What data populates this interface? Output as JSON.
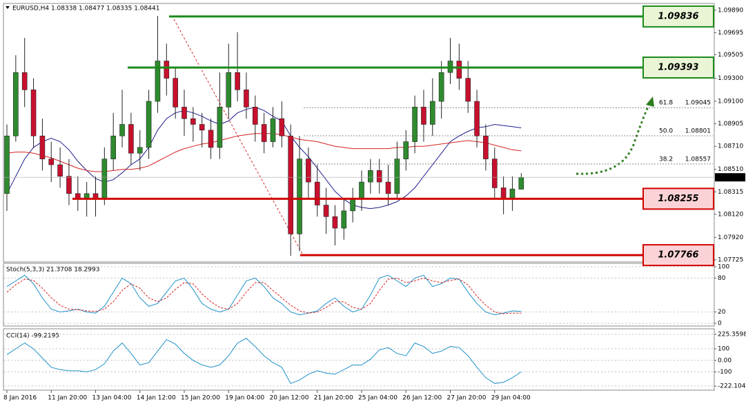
{
  "chart_data": [
    {
      "type": "candlestick",
      "title": "EURUSD,H4  1.08338 1.08477 1.08335 1.08441",
      "categories": [
        "8 Jan 2016",
        null,
        null,
        null,
        null,
        "11 Jan 20:00",
        null,
        null,
        null,
        null,
        "13 Jan 04:00",
        null,
        null,
        null,
        null,
        "14 Jan 12:00",
        null,
        null,
        null,
        null,
        "15 Jan 20:00",
        null,
        null,
        null,
        null,
        "19 Jan 04:00",
        null,
        null,
        null,
        null,
        "20 Jan 12:00",
        null,
        null,
        null,
        null,
        "21 Jan 20:00",
        null,
        null,
        null,
        null,
        "25 Jan 04:00",
        null,
        null,
        null,
        null,
        "26 Jan 12:00",
        null,
        null,
        null,
        null,
        "27 Jan 20:00",
        null,
        null,
        null,
        null,
        "29 Jan 04:00",
        null,
        null,
        null
      ],
      "open": [
        1.083,
        1.088,
        1.0935,
        1.092,
        1.088,
        1.086,
        1.0855,
        1.0845,
        1.083,
        1.0825,
        1.083,
        1.0825,
        1.086,
        1.088,
        1.089,
        1.0865,
        1.087,
        1.091,
        1.0945,
        1.093,
        1.0905,
        1.0895,
        1.089,
        1.0885,
        1.087,
        1.0905,
        1.0935,
        1.092,
        1.0905,
        1.089,
        1.0875,
        1.0895,
        1.088,
        1.0795,
        1.086,
        1.084,
        1.082,
        1.081,
        1.08,
        1.0815,
        1.0825,
        1.084,
        1.085,
        1.084,
        1.083,
        1.086,
        1.0875,
        1.0905,
        1.089,
        1.091,
        1.0935,
        1.0945,
        1.093,
        1.091,
        1.088,
        1.086,
        1.0835,
        1.0826,
        1.08338
      ],
      "high": [
        1.089,
        1.095,
        1.0965,
        1.093,
        1.0895,
        1.0875,
        1.087,
        1.086,
        1.0845,
        1.084,
        1.0845,
        1.087,
        1.09,
        1.092,
        1.09,
        1.0885,
        1.092,
        1.0984,
        1.096,
        1.094,
        1.092,
        1.0905,
        1.09,
        1.0895,
        1.0935,
        1.096,
        1.097,
        1.0935,
        1.0915,
        1.09,
        1.0905,
        1.091,
        1.089,
        1.088,
        1.087,
        1.0855,
        1.0835,
        1.082,
        1.0825,
        1.0835,
        1.085,
        1.086,
        1.086,
        1.0855,
        1.0875,
        1.0885,
        1.0915,
        1.092,
        1.093,
        1.0945,
        1.0965,
        1.096,
        1.0945,
        1.092,
        1.089,
        1.087,
        1.0845,
        1.0845,
        1.08477
      ],
      "low": [
        1.0815,
        1.0875,
        1.0905,
        1.087,
        1.085,
        1.084,
        1.0835,
        1.082,
        1.0815,
        1.081,
        1.081,
        1.082,
        1.085,
        1.087,
        1.0855,
        1.085,
        1.086,
        1.09,
        1.0915,
        1.0895,
        1.088,
        1.0875,
        1.087,
        1.086,
        1.086,
        1.0895,
        1.091,
        1.0895,
        1.0875,
        1.0865,
        1.087,
        1.087,
        1.0776,
        1.078,
        1.0825,
        1.081,
        1.0795,
        1.0785,
        1.079,
        1.0805,
        1.0815,
        1.083,
        1.083,
        1.082,
        1.0825,
        1.085,
        1.0865,
        1.0875,
        1.088,
        1.0895,
        1.0925,
        1.092,
        1.09,
        1.087,
        1.085,
        1.0825,
        1.0812,
        1.0815,
        1.08335
      ],
      "close": [
        1.088,
        1.0935,
        1.092,
        1.088,
        1.086,
        1.0855,
        1.0845,
        1.083,
        1.0825,
        1.083,
        1.0825,
        1.086,
        1.088,
        1.089,
        1.0865,
        1.087,
        1.091,
        1.0945,
        1.093,
        1.0905,
        1.0895,
        1.089,
        1.0885,
        1.087,
        1.0905,
        1.0935,
        1.092,
        1.0905,
        1.089,
        1.0875,
        1.0895,
        1.088,
        1.0795,
        1.086,
        1.084,
        1.082,
        1.081,
        1.08,
        1.0815,
        1.0825,
        1.084,
        1.085,
        1.084,
        1.083,
        1.086,
        1.0875,
        1.0905,
        1.089,
        1.091,
        1.0935,
        1.0945,
        1.093,
        1.091,
        1.088,
        1.086,
        1.0835,
        1.0826,
        1.0834,
        1.08441
      ],
      "up_color": "#2e8b2e",
      "down_color": "#c8102e",
      "series": [
        {
          "color": "#1c1c8c",
          "values": [
            1.083,
            1.0845,
            1.086,
            1.087,
            1.0875,
            1.0878,
            1.0875,
            1.0868,
            1.0858,
            1.085,
            1.0843,
            1.084,
            1.0842,
            1.0848,
            1.0855,
            1.086,
            1.087,
            1.0885,
            1.0895,
            1.09,
            1.0902,
            1.09,
            1.0897,
            1.0893,
            1.089,
            1.0893,
            1.09,
            1.0903,
            1.0905,
            1.0902,
            1.0897,
            1.0893,
            1.088,
            1.087,
            1.0862,
            1.0852,
            1.0842,
            1.0832,
            1.0825,
            1.082,
            1.0818,
            1.0817,
            1.0818,
            1.082,
            1.0823,
            1.0828,
            1.0835,
            1.0845,
            1.0855,
            1.0865,
            1.0875,
            1.088,
            1.0884,
            1.0887,
            1.0888,
            1.089,
            1.0889,
            1.0888,
            1.0887
          ]
        },
        {
          "color": "#d42020",
          "values": [
            1.0865,
            1.0866,
            1.0866,
            1.0865,
            1.0863,
            1.0861,
            1.0858,
            1.0855,
            1.0852,
            1.085,
            1.0849,
            1.0849,
            1.085,
            1.0851,
            1.0851,
            1.0852,
            1.0854,
            1.0858,
            1.0862,
            1.0866,
            1.0869,
            1.0871,
            1.0873,
            1.0874,
            1.0876,
            1.0878,
            1.088,
            1.0881,
            1.0882,
            1.0882,
            1.0882,
            1.0881,
            1.0879,
            1.0877,
            1.0876,
            1.0875,
            1.0873,
            1.0871,
            1.087,
            1.0869,
            1.0869,
            1.0869,
            1.0869,
            1.0869,
            1.087,
            1.087,
            1.0871,
            1.0871,
            1.0872,
            1.0873,
            1.0874,
            1.0875,
            1.0876,
            1.0875,
            1.0874,
            1.0872,
            1.087,
            1.0868,
            1.0867
          ]
        }
      ],
      "levels": [
        1.09836,
        1.09393,
        1.08255,
        1.07766
      ],
      "level_colors": [
        "#1a8a1a",
        "#1a8a1a",
        "#d00000",
        "#d00000"
      ],
      "level_box_colors": [
        "#eaf5d6",
        "#eaf5d6",
        "#fbd3d6",
        "#fbd3d6"
      ],
      "fib_levels": [
        {
          "ratio": 61.8,
          "value": 1.09045
        },
        {
          "ratio": {
            "value": 50,
            "label": "50.0"
          },
          "value": 1.08801
        },
        {
          "ratio": 38.2,
          "value": 1.08557
        }
      ],
      "last_price": 1.08441,
      "ylim": [
        1.07707,
        1.09949
      ],
      "yticks": [
        {
          "value": 1.0989,
          "label": "1.09890"
        },
        1.09695,
        1.09505,
        {
          "value": 1.093,
          "label": "1.09300"
        },
        {
          "value": 1.091,
          "label": "1.09100"
        },
        1.08905,
        {
          "value": 1.0871,
          "label": "1.08710"
        },
        {
          "value": 1.0851,
          "label": "1.08510"
        },
        1.08315,
        {
          "value": 1.0812,
          "label": "1.08120"
        },
        {
          "value": 1.0792,
          "label": "1.07920"
        },
        1.07725
      ]
    },
    {
      "type": "line",
      "title": "Stoch(5,3,3) 21.3708 18.2993",
      "series": [
        {
          "color": "#1e90c8",
          "values": [
            65,
            75,
            85,
            70,
            45,
            25,
            20,
            22,
            25,
            20,
            18,
            30,
            55,
            80,
            70,
            45,
            30,
            35,
            55,
            75,
            80,
            60,
            35,
            25,
            20,
            25,
            50,
            75,
            80,
            65,
            45,
            35,
            20,
            15,
            18,
            22,
            35,
            45,
            30,
            20,
            25,
            50,
            80,
            85,
            75,
            65,
            80,
            85,
            65,
            70,
            80,
            78,
            55,
            35,
            20,
            15,
            18,
            22,
            21
          ]
        },
        {
          "color": "#d42020",
          "dashed": true,
          "values": [
            55,
            68,
            78,
            76,
            62,
            45,
            32,
            25,
            24,
            22,
            21,
            25,
            38,
            58,
            70,
            62,
            45,
            38,
            45,
            60,
            72,
            70,
            52,
            38,
            28,
            25,
            35,
            55,
            72,
            72,
            58,
            45,
            32,
            22,
            18,
            20,
            28,
            38,
            38,
            28,
            25,
            35,
            58,
            78,
            80,
            72,
            75,
            80,
            75,
            72,
            76,
            78,
            68,
            48,
            32,
            20,
            17,
            18,
            18
          ]
        }
      ],
      "ylim": [
        0,
        100
      ],
      "yticks": [
        100,
        80,
        20,
        0
      ]
    },
    {
      "type": "line",
      "title": "CCI(14) -99.2195",
      "series": [
        {
          "color": "#1e90c8",
          "values": [
            50,
            100,
            150,
            100,
            20,
            -60,
            -80,
            -90,
            -90,
            -100,
            -80,
            -30,
            80,
            150,
            60,
            -40,
            -20,
            80,
            180,
            140,
            60,
            0,
            -40,
            -60,
            -40,
            40,
            150,
            190,
            120,
            40,
            -20,
            -60,
            -200,
            -170,
            -120,
            -90,
            -110,
            -120,
            -80,
            -40,
            -40,
            10,
            90,
            110,
            60,
            40,
            150,
            120,
            60,
            80,
            120,
            110,
            40,
            -60,
            -150,
            -200,
            -190,
            -150,
            -100
          ]
        }
      ],
      "ylim": [
        -222.1048,
        225.3598
      ],
      "yticks": [
        225.3598,
        100,
        {
          "value": 0,
          "label": "0.00"
        },
        -100,
        -222.1048
      ]
    }
  ]
}
